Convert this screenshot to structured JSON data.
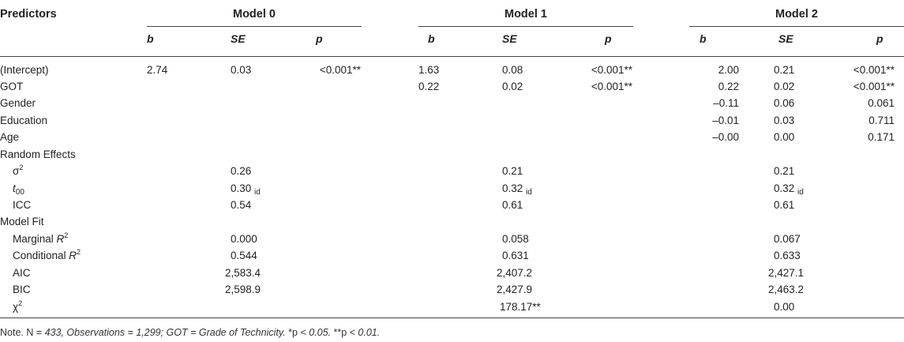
{
  "header": {
    "predictors": "Predictors",
    "models": [
      "Model 0",
      "Model 1",
      "Model 2"
    ],
    "b": "b",
    "se": "SE",
    "p": "p"
  },
  "rows": {
    "intercept": {
      "label": "(Intercept)",
      "m0": [
        "2.74",
        "0.03",
        "<0.001**"
      ],
      "m1": [
        "1.63",
        "0.08",
        "<0.001**"
      ],
      "m2": [
        "2.00",
        "0.21",
        "<0.001**"
      ]
    },
    "got": {
      "label": "GOT",
      "m1": [
        "0.22",
        "0.02",
        "<0.001**"
      ],
      "m2": [
        "0.22",
        "0.02",
        "<0.001**"
      ]
    },
    "gender": {
      "label": "Gender",
      "m2": [
        "–0.11",
        "0.06",
        "0.061"
      ]
    },
    "education": {
      "label": "Education",
      "m2": [
        "–0.01",
        "0.03",
        "0.711"
      ]
    },
    "age": {
      "label": "Age",
      "m2": [
        "–0.00",
        "0.00",
        "0.171"
      ]
    },
    "random_effects": {
      "label": "Random Effects"
    },
    "sigma2": {
      "label": "σ",
      "sup": "2",
      "values": [
        "0.26",
        "0.21",
        "0.21"
      ]
    },
    "t00": {
      "label": "t",
      "sub": "00",
      "values": [
        "0.30",
        "0.32",
        "0.32"
      ],
      "suffix": "id"
    },
    "icc": {
      "label": "ICC",
      "values": [
        "0.54",
        "0.61",
        "0.61"
      ]
    },
    "model_fit": {
      "label": "Model Fit"
    },
    "marginal_r2": {
      "label": "Marginal ",
      "r": "R",
      "sup": "2",
      "values": [
        "0.000",
        "0.058",
        "0.067"
      ]
    },
    "conditional_r2": {
      "label": "Conditional ",
      "r": "R",
      "sup": "2",
      "values": [
        "0.544",
        "0.631",
        "0.633"
      ]
    },
    "aic": {
      "label": "AIC",
      "values": [
        "2,583.4",
        "2,407.2",
        "2,427.1"
      ]
    },
    "bic": {
      "label": "BIC",
      "values": [
        "2,598.9",
        "2,427.9",
        "2,463.2"
      ]
    },
    "chi2": {
      "label": "χ",
      "sup": "2",
      "values": [
        "178.17**",
        "0.00"
      ]
    }
  },
  "note": {
    "prefix": "Note. N = ",
    "italic": "433, Observations = 1,299; GOT = Grade of Technicity.",
    "p05_a": " *p ",
    "p05_b": "< 0.05.",
    "p01_a": " **p ",
    "p01_b": "< 0.01."
  }
}
